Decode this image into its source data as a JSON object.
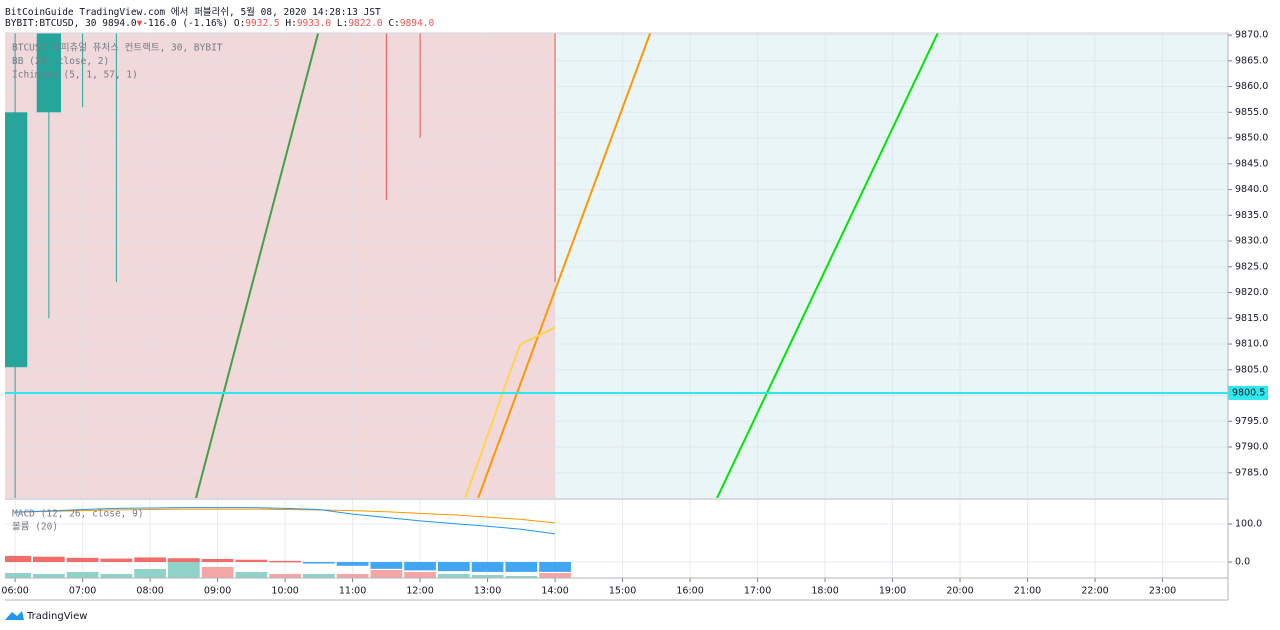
{
  "header": {
    "publisher": "BitCoinGuide TradingView.com 에서 퍼블리쉬, 5월 08, 2020 14:28:13 JST",
    "symbol": "BYBIT:BTCUSD, 30",
    "last": "9894.0",
    "change": "-116.0 (-1.16%)",
    "o_label": "O:",
    "open": "9932.5",
    "h_label": "H:",
    "high": "9933.0",
    "l_label": "L:",
    "low": "9822.0",
    "c_label": "C:",
    "close": "9894.0"
  },
  "footer": {
    "brand": "TradingView"
  },
  "chart_data": [
    {
      "type": "candlestick",
      "legend": [
        "BTCUSD 퍼피츄얼 퓨처스 컨트랙트, 30, BYBIT",
        "BB (20, close, 2)",
        "Ichimoku (5, 1, 57, 1)"
      ],
      "xlim": [
        5.85,
        23.97
      ],
      "xticks": [
        {
          "value": 6,
          "label": "06:00"
        },
        {
          "value": 7,
          "label": "07:00"
        },
        {
          "value": 8,
          "label": "08:00"
        },
        {
          "value": 9,
          "label": "09:00"
        },
        {
          "value": 10,
          "label": "10:00"
        },
        {
          "value": 11,
          "label": "11:00"
        },
        {
          "value": 12,
          "label": "12:00"
        },
        {
          "value": 13,
          "label": "13:00"
        },
        {
          "value": 14,
          "label": "14:00"
        },
        {
          "value": 15,
          "label": "15:00"
        },
        {
          "value": 16,
          "label": "16:00"
        },
        {
          "value": 17,
          "label": "17:00"
        },
        {
          "value": 18,
          "label": "18:00"
        },
        {
          "value": 19,
          "label": "19:00"
        },
        {
          "value": 20,
          "label": "20:00"
        },
        {
          "value": 21,
          "label": "21:00"
        },
        {
          "value": 22,
          "label": "22:00"
        },
        {
          "value": 23,
          "label": "23:00"
        }
      ],
      "ylim": [
        9780.1,
        9870.4
      ],
      "yticks": [
        {
          "value": 9785,
          "label": "9785.0"
        },
        {
          "value": 9790,
          "label": "9790.0"
        },
        {
          "value": 9795,
          "label": "9795.0"
        },
        {
          "value": 9800,
          "label": "9800.0"
        },
        {
          "value": 9805,
          "label": "9805.0"
        },
        {
          "value": 9810,
          "label": "9810.0"
        },
        {
          "value": 9815,
          "label": "9815.0"
        },
        {
          "value": 9820,
          "label": "9820.0"
        },
        {
          "value": 9825,
          "label": "9825.0"
        },
        {
          "value": 9830,
          "label": "9830.0"
        },
        {
          "value": 9835,
          "label": "9835.0"
        },
        {
          "value": 9840,
          "label": "9840.0"
        },
        {
          "value": 9845,
          "label": "9845.0"
        },
        {
          "value": 9850,
          "label": "9850.0"
        },
        {
          "value": 9855,
          "label": "9855.0"
        },
        {
          "value": 9860,
          "label": "9860.0"
        },
        {
          "value": 9865,
          "label": "9865.0"
        },
        {
          "value": 9870,
          "label": "9870.0"
        }
      ],
      "grid": true,
      "clouds": [
        {
          "x": [
            5.85,
            14
          ],
          "color": "#f0d8db"
        },
        {
          "x": [
            14,
            23.97
          ],
          "color": "#eaf5f8"
        }
      ],
      "candles": {
        "x": [
          6,
          6.5,
          7,
          7.5,
          11.5,
          12,
          14
        ],
        "open": [
          9805.5,
          9855,
          null,
          null,
          null,
          null,
          null
        ],
        "close": [
          9855,
          null,
          null,
          null,
          null,
          null,
          null
        ],
        "low": [
          null,
          9815,
          9856,
          9822,
          9838,
          9850,
          9822
        ],
        "colors": [
          "#26a69a",
          "#26a69a",
          "#26a69a",
          "#26a69a",
          "#ef5350",
          "#ef5350",
          "#ef5350"
        ]
      },
      "lines": [
        {
          "color": "#43a047",
          "x": [
            8.68,
            10.49
          ],
          "values": [
            9780.1,
            9870.4
          ]
        },
        {
          "color": "#ff9800",
          "x": [
            12.86,
            15.41
          ],
          "values": [
            9780.1,
            9870.4
          ]
        },
        {
          "color": "#00e600",
          "x": [
            16.4,
            19.67
          ],
          "values": [
            9780.1,
            9870.4
          ]
        },
        {
          "color": "#ffd54f",
          "x": [
            12.67,
            13.48,
            14
          ],
          "values": [
            9780.1,
            9809.9,
            9813.2
          ]
        }
      ],
      "price_line": 9800.5,
      "price_color": "#2ee8f0"
    },
    {
      "type": "macd",
      "legend": [
        "MACD (12, 26, close, 9)",
        "볼륨 (20)"
      ],
      "ylim": [
        -42,
        163
      ],
      "yticks": [
        {
          "value": 100,
          "label": "100.0"
        },
        {
          "value": 0,
          "label": "0.0"
        }
      ],
      "x": [
        6,
        6.5,
        7,
        7.5,
        8,
        8.5,
        9,
        9.5,
        10,
        10.5,
        11,
        11.5,
        12,
        12.5,
        13,
        13.5,
        14
      ],
      "macd": {
        "color": "#2196f3",
        "values": [
          131,
          134,
          138,
          141,
          142,
          143,
          143,
          143,
          141,
          138,
          126,
          117,
          108,
          101,
          94,
          86,
          74
        ]
      },
      "signal": {
        "color": "#ff9800",
        "values": [
          131,
          133,
          135,
          137,
          138,
          139,
          139,
          139,
          138,
          137,
          135,
          132,
          128,
          124,
          118,
          112,
          103
        ]
      },
      "histogram": {
        "values": [
          16,
          14,
          11,
          9,
          12,
          10,
          8,
          6,
          3,
          -2,
          -10,
          -18,
          -22,
          -24,
          -26,
          -26,
          -26
        ],
        "colors": [
          "#ef5350",
          "#ef5350",
          "#ef5350",
          "#ef5350",
          "#ef5350",
          "#ef5350",
          "#ef5350",
          "#ef5350",
          "#ef5350",
          "#2196f3",
          "#2196f3",
          "#2196f3",
          "#2196f3",
          "#2196f3",
          "#2196f3",
          "#2196f3",
          "#2196f3"
        ]
      },
      "volume": {
        "values": [
          50,
          40,
          60,
          40,
          90,
          160,
          110,
          60,
          40,
          40,
          40,
          80,
          60,
          40,
          30,
          20,
          50
        ],
        "colors": [
          "#8fd3c8",
          "#8fd3c8",
          "#8fd3c8",
          "#8fd3c8",
          "#8fd3c8",
          "#8fd3c8",
          "#f4a5a5",
          "#8fd3c8",
          "#f4a5a5",
          "#8fd3c8",
          "#f4a5a5",
          "#f4a5a5",
          "#f4a5a5",
          "#8fd3c8",
          "#8fd3c8",
          "#8fd3c8",
          "#f4a5a5"
        ]
      }
    }
  ]
}
